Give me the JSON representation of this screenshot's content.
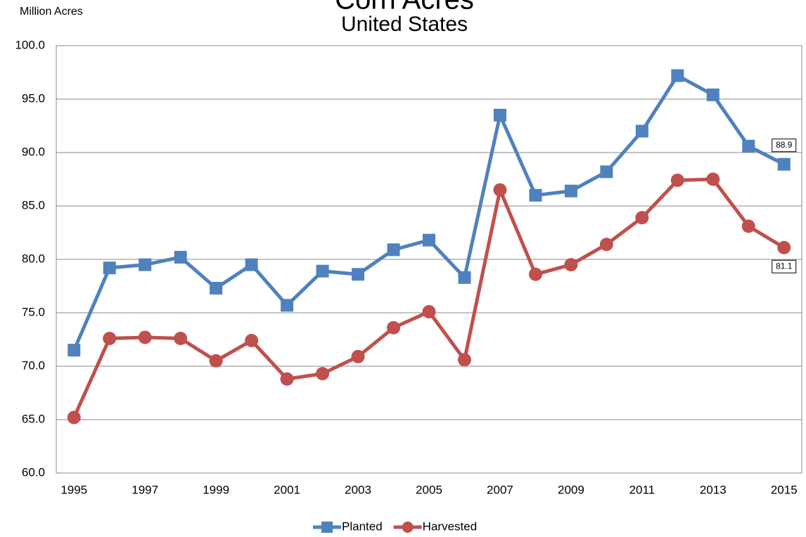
{
  "chart_data": {
    "type": "line",
    "title": "Corn Acres",
    "subtitle": "United States",
    "y_label": "Million Acres",
    "x": [
      1995,
      1996,
      1997,
      1998,
      1999,
      2000,
      2001,
      2002,
      2003,
      2004,
      2005,
      2006,
      2007,
      2008,
      2009,
      2010,
      2011,
      2012,
      2013,
      2014,
      2015
    ],
    "series": [
      {
        "name": "Planted",
        "color": "#4f81bd",
        "marker": "square",
        "values": [
          71.5,
          79.2,
          79.5,
          80.2,
          77.3,
          79.5,
          75.7,
          78.9,
          78.6,
          80.9,
          81.8,
          78.3,
          93.5,
          86.0,
          86.4,
          88.2,
          92.0,
          97.2,
          95.4,
          90.6,
          88.9
        ]
      },
      {
        "name": "Harvested",
        "color": "#c0504d",
        "marker": "circle",
        "values": [
          65.2,
          72.6,
          72.7,
          72.6,
          70.5,
          72.4,
          68.8,
          69.3,
          70.9,
          73.6,
          75.1,
          70.6,
          86.5,
          78.6,
          79.5,
          81.4,
          83.9,
          87.4,
          87.5,
          83.1,
          81.1
        ]
      }
    ],
    "xlim": [
      1994.5,
      2015.5
    ],
    "xticks": [
      1995,
      1997,
      1999,
      2001,
      2003,
      2005,
      2007,
      2009,
      2011,
      2013,
      2015
    ],
    "ylim": [
      60,
      100
    ],
    "yticks": [
      {
        "value": 60,
        "label": "60.0"
      },
      {
        "value": 65,
        "label": "65.0"
      },
      {
        "value": 70,
        "label": "70.0"
      },
      {
        "value": 75,
        "label": "75.0"
      },
      {
        "value": 80,
        "label": "80.0"
      },
      {
        "value": 85,
        "label": "85.0"
      },
      {
        "value": 90,
        "label": "90.0"
      },
      {
        "value": 95,
        "label": "95.0"
      },
      {
        "value": 100,
        "label": "100.0"
      }
    ],
    "grid": true,
    "legend": "bottom"
  }
}
